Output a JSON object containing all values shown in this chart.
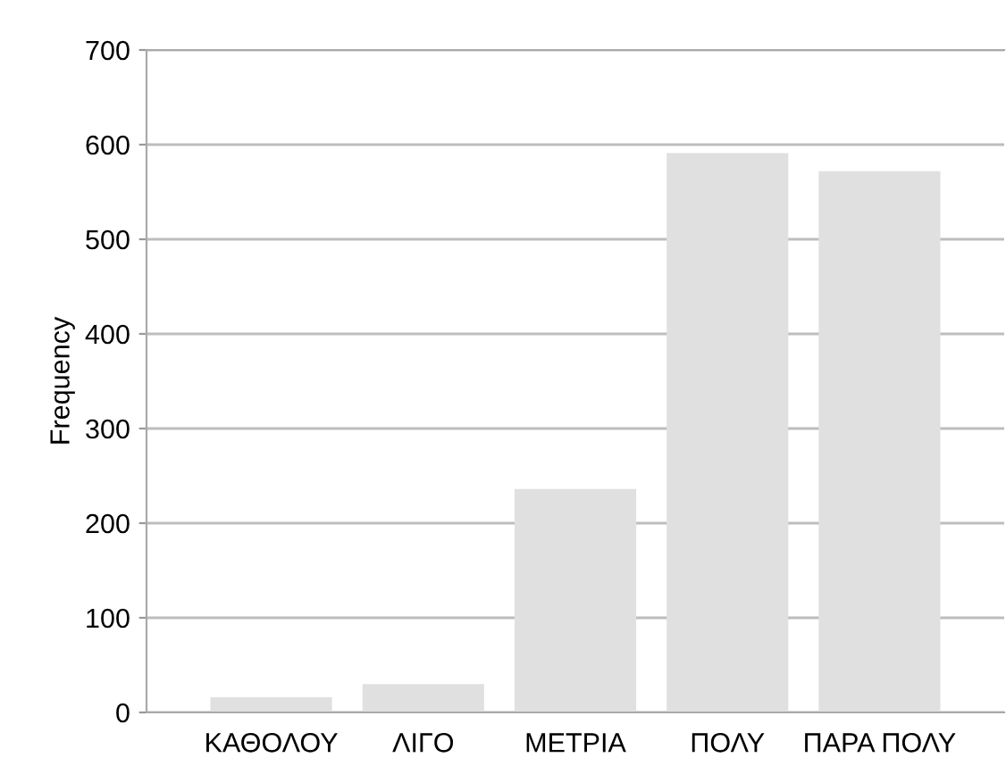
{
  "chart_data": {
    "type": "bar",
    "ylabel": "Frequency",
    "categories": [
      "ΚΑΘΟΛΟΥ",
      "ΛΙΓΟ",
      "ΜΕΤΡΙΑ",
      "ΠΟΛΥ",
      "ΠΑΡΑ ΠΟΛΥ"
    ],
    "values": [
      16,
      30,
      236,
      591,
      572
    ],
    "color": "#e0e0e0",
    "ylim": [
      0,
      700
    ],
    "yticks": [
      0,
      100,
      200,
      300,
      400,
      500,
      600,
      700
    ],
    "grid": "y"
  }
}
